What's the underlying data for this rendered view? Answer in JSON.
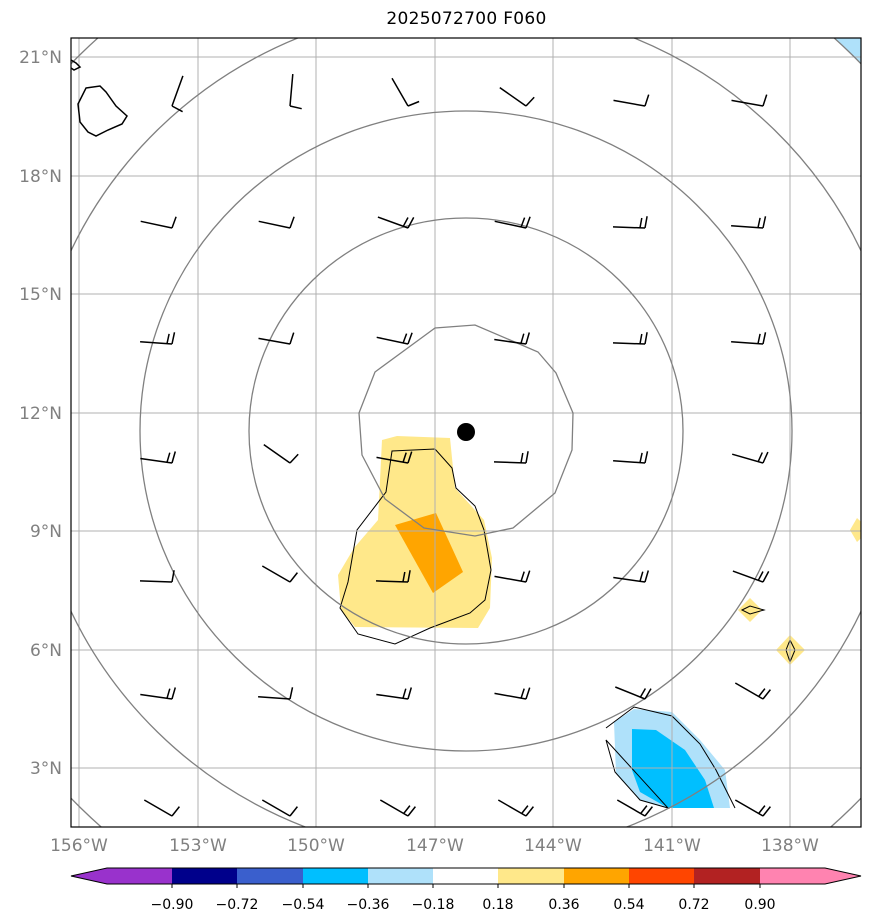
{
  "title": "2025072700 F060",
  "lat_labels": [
    "21°N",
    "18°N",
    "15°N",
    "12°N",
    "9°N",
    "6°N",
    "3°N"
  ],
  "lon_labels": [
    "156°W",
    "153°W",
    "150°W",
    "147°W",
    "144°W",
    "141°W",
    "138°W"
  ],
  "colorbar": {
    "ticks": [
      "−0.90",
      "−0.72",
      "−0.54",
      "−0.36",
      "−0.18",
      "0.18",
      "0.36",
      "0.54",
      "0.72",
      "0.90"
    ],
    "colors": [
      "#9932cc",
      "#00008b",
      "#3a5fcd",
      "#00bfff",
      "#afe1fa",
      "#ffffff",
      "#ffe88a",
      "#ffa500",
      "#ff4500",
      "#b22222",
      "#ff83b0"
    ]
  },
  "storm_center": {
    "lat": 11.5,
    "lon": "146.2°W",
    "marker": "filled-circle"
  },
  "range_rings": {
    "count": 5,
    "color": "#808080"
  }
}
